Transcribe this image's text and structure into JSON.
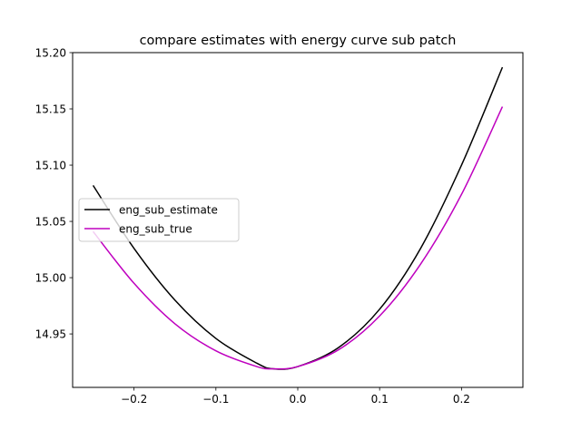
{
  "chart_data": {
    "type": "line",
    "title": "compare estimates with energy curve sub patch",
    "xlabel": "",
    "ylabel": "",
    "xlim": [
      -0.275,
      0.275
    ],
    "ylim": [
      14.9025,
      15.2
    ],
    "x_ticks": [
      -0.2,
      -0.1,
      0.0,
      0.1,
      0.2
    ],
    "x_tick_labels": [
      "−0.2",
      "−0.1",
      "0.0",
      "0.1",
      "0.2"
    ],
    "y_ticks": [
      14.95,
      15.0,
      15.05,
      15.1,
      15.15,
      15.2
    ],
    "y_tick_labels": [
      "14.95",
      "15.00",
      "15.05",
      "15.10",
      "15.15",
      "15.20"
    ],
    "grid": false,
    "legend_position": "center-left",
    "series": [
      {
        "name": "eng_sub_estimate",
        "color": "#000000",
        "x": [
          -0.25,
          -0.2,
          -0.15,
          -0.1,
          -0.05,
          -0.03,
          0.0,
          0.05,
          0.1,
          0.15,
          0.2,
          0.25
        ],
        "y": [
          15.082,
          15.026,
          14.98,
          14.946,
          14.924,
          14.919,
          14.921,
          14.938,
          14.972,
          15.026,
          15.1,
          15.187
        ]
      },
      {
        "name": "eng_sub_true",
        "color": "#bf00bf",
        "x": [
          -0.25,
          -0.2,
          -0.15,
          -0.1,
          -0.05,
          -0.03,
          0.0,
          0.05,
          0.1,
          0.15,
          0.2,
          0.25
        ],
        "y": [
          15.041,
          14.995,
          14.959,
          14.935,
          14.921,
          14.919,
          14.921,
          14.936,
          14.966,
          15.012,
          15.074,
          15.152
        ]
      }
    ]
  }
}
